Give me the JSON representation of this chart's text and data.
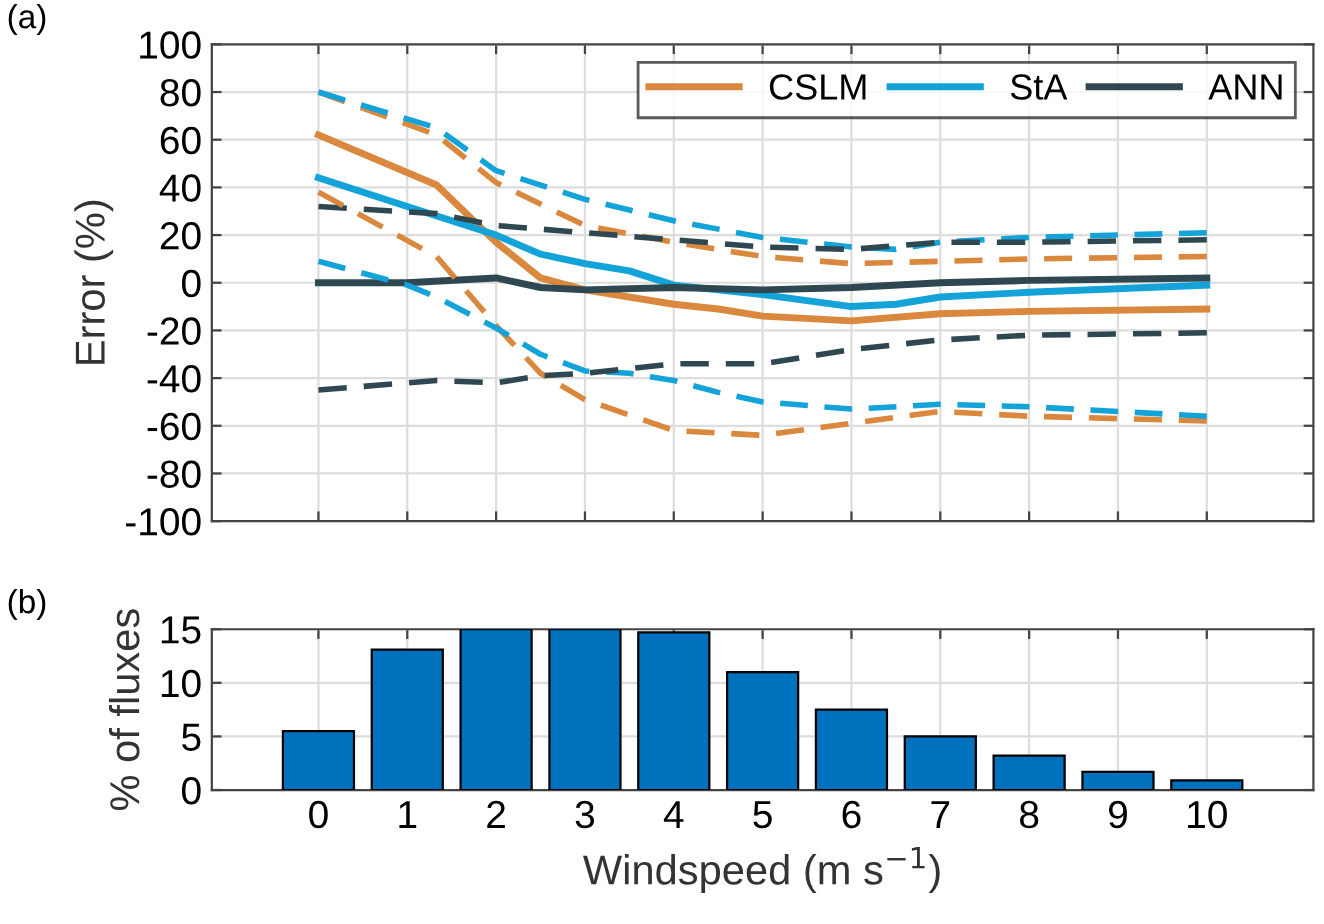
{
  "chart_data": [
    {
      "type": "line",
      "ylabel": "Error (%)",
      "annotations": [
        "(a)"
      ],
      "xlim": [
        -1.2,
        11.2
      ],
      "xticks": [
        0,
        1,
        2,
        3,
        4,
        5,
        6,
        7,
        8,
        9,
        10
      ],
      "ylim": [
        -100,
        100
      ],
      "yticks": [
        -100,
        -80,
        -60,
        -40,
        -20,
        0,
        20,
        40,
        60,
        80,
        100
      ],
      "grid": true,
      "legend": "top right",
      "tick_labels": "y",
      "marker": "none",
      "series": [
        {
          "name": "CSLM",
          "color": "#d9883e",
          "line_style": "solid",
          "x": [
            0,
            1.33,
            2,
            2.5,
            3,
            4,
            4.5,
            5,
            6,
            7,
            8,
            10
          ],
          "values": [
            62,
            41,
            17,
            2,
            -3,
            -9,
            -11,
            -14,
            -16,
            -13,
            -12,
            -11
          ]
        },
        {
          "name": "StA",
          "color": "#14a3d8",
          "line_style": "solid",
          "x": [
            0,
            1,
            2,
            2.5,
            3,
            3.5,
            4,
            5,
            6,
            6.5,
            7,
            8,
            10
          ],
          "values": [
            44,
            32,
            20,
            12,
            8,
            5,
            -1,
            -5,
            -10,
            -9,
            -6,
            -4,
            -1
          ]
        },
        {
          "name": "ANN",
          "color": "#2f4751",
          "line_style": "solid",
          "x": [
            0,
            1,
            2,
            2.5,
            3,
            4,
            5,
            6,
            7,
            8,
            10
          ],
          "values": [
            0,
            0,
            2,
            -2,
            -3,
            -2,
            -3,
            -2,
            0,
            1,
            2
          ]
        },
        {
          "color": "#d9883e",
          "line_style": "dashed",
          "x": [
            0,
            1.33,
            2,
            3,
            4,
            5,
            6,
            7,
            8,
            10
          ],
          "values": [
            80,
            62,
            42,
            24,
            17,
            11,
            8,
            9,
            10,
            11
          ]
        },
        {
          "color": "#14a3d8",
          "line_style": "dashed",
          "x": [
            0,
            1.33,
            2,
            3,
            4,
            5,
            6,
            6.5,
            7,
            8,
            10
          ],
          "values": [
            80,
            65,
            47,
            35,
            26,
            19,
            15,
            14,
            17,
            19,
            21
          ]
        },
        {
          "color": "#2f4751",
          "line_style": "dashed",
          "x": [
            0,
            1.33,
            2,
            3,
            4,
            5,
            6,
            7,
            8,
            10
          ],
          "values": [
            32,
            29,
            24,
            21,
            18,
            15,
            14,
            17,
            17,
            18
          ]
        },
        {
          "color": "#d9883e",
          "line_style": "dashed",
          "x": [
            0,
            1.33,
            2,
            2.5,
            3,
            4,
            5,
            6,
            7,
            8,
            10
          ],
          "values": [
            38,
            11,
            -18,
            -38,
            -49,
            -62,
            -64,
            -59,
            -54,
            -56,
            -58
          ]
        },
        {
          "color": "#14a3d8",
          "line_style": "dashed",
          "x": [
            0,
            1,
            1.33,
            2,
            2.5,
            3,
            3.5,
            4,
            4.5,
            5,
            6,
            7,
            8,
            10
          ],
          "values": [
            9,
            -1,
            -6,
            -19,
            -30,
            -37,
            -38,
            -41,
            -46,
            -50,
            -53,
            -51,
            -52,
            -56
          ]
        },
        {
          "color": "#2f4751",
          "line_style": "dashed",
          "x": [
            0,
            1.33,
            2,
            2.5,
            3,
            4,
            5,
            6,
            7,
            8,
            10
          ],
          "values": [
            -45,
            -41,
            -42,
            -39,
            -38,
            -34,
            -34,
            -28,
            -24,
            -22,
            -21
          ]
        }
      ]
    },
    {
      "type": "bar",
      "xlabel": "Windspeed (m s$^{−1}$)",
      "ylabel": "% of fluxes",
      "annotations": [
        "(b)"
      ],
      "x": [
        0,
        1,
        2,
        3,
        4,
        5,
        6,
        7,
        8,
        9,
        10
      ],
      "values": [
        5.5,
        13.1,
        15,
        15,
        14.7,
        11,
        7.5,
        5.0,
        3.2,
        1.7,
        0.9
      ],
      "color": "#0072bd",
      "xlim": [
        -1.2,
        11.2
      ],
      "xticks": [
        0,
        1,
        2,
        3,
        4,
        5,
        6,
        7,
        8,
        9,
        10
      ],
      "ylim": [
        0,
        15
      ],
      "yticks": [
        0,
        5,
        10,
        15
      ],
      "grid": true
    }
  ]
}
